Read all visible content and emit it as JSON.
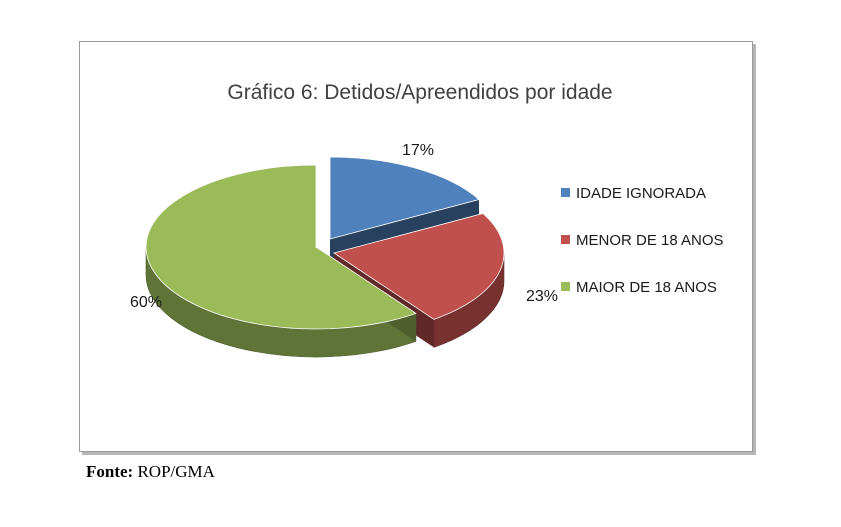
{
  "chart_data": {
    "type": "pie",
    "title": "Gráfico 6: Detidos/Apreendidos por idade",
    "categories": [
      "IDADE IGNORADA",
      "MENOR DE 18 ANOS",
      "MAIOR DE 18 ANOS"
    ],
    "values": [
      17,
      23,
      60
    ],
    "value_labels": [
      "17%",
      "23%",
      "60%"
    ],
    "colors": [
      "#4F81BD",
      "#C0504D",
      "#9BBB59"
    ],
    "legend_position": "right",
    "style": "3d-exploded"
  },
  "source": {
    "label": "Fonte:",
    "text": "ROP/GMA"
  }
}
